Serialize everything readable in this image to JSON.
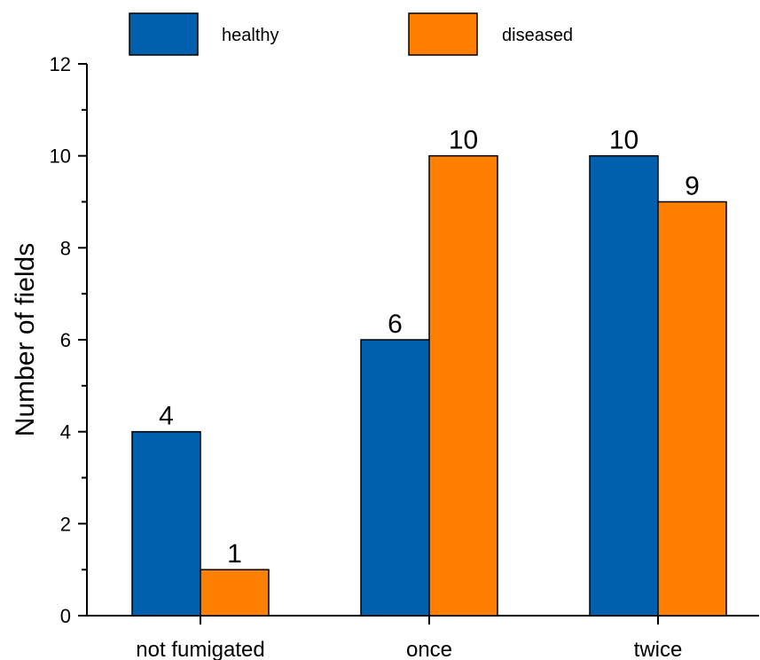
{
  "chart_data": {
    "type": "bar",
    "categories": [
      "not fumigated",
      "once",
      "twice"
    ],
    "series": [
      {
        "name": "healthy",
        "values": [
          4,
          6,
          10
        ],
        "color": "#0060ad"
      },
      {
        "name": "diseased",
        "values": [
          1,
          10,
          9
        ],
        "color": "#ff8000"
      }
    ],
    "ylabel": "Number of fields",
    "ylim": [
      0,
      12
    ],
    "yticks": [
      "0",
      "2",
      "4",
      "6",
      "8",
      "10",
      "12"
    ],
    "legend_position": "top",
    "grid": false
  }
}
